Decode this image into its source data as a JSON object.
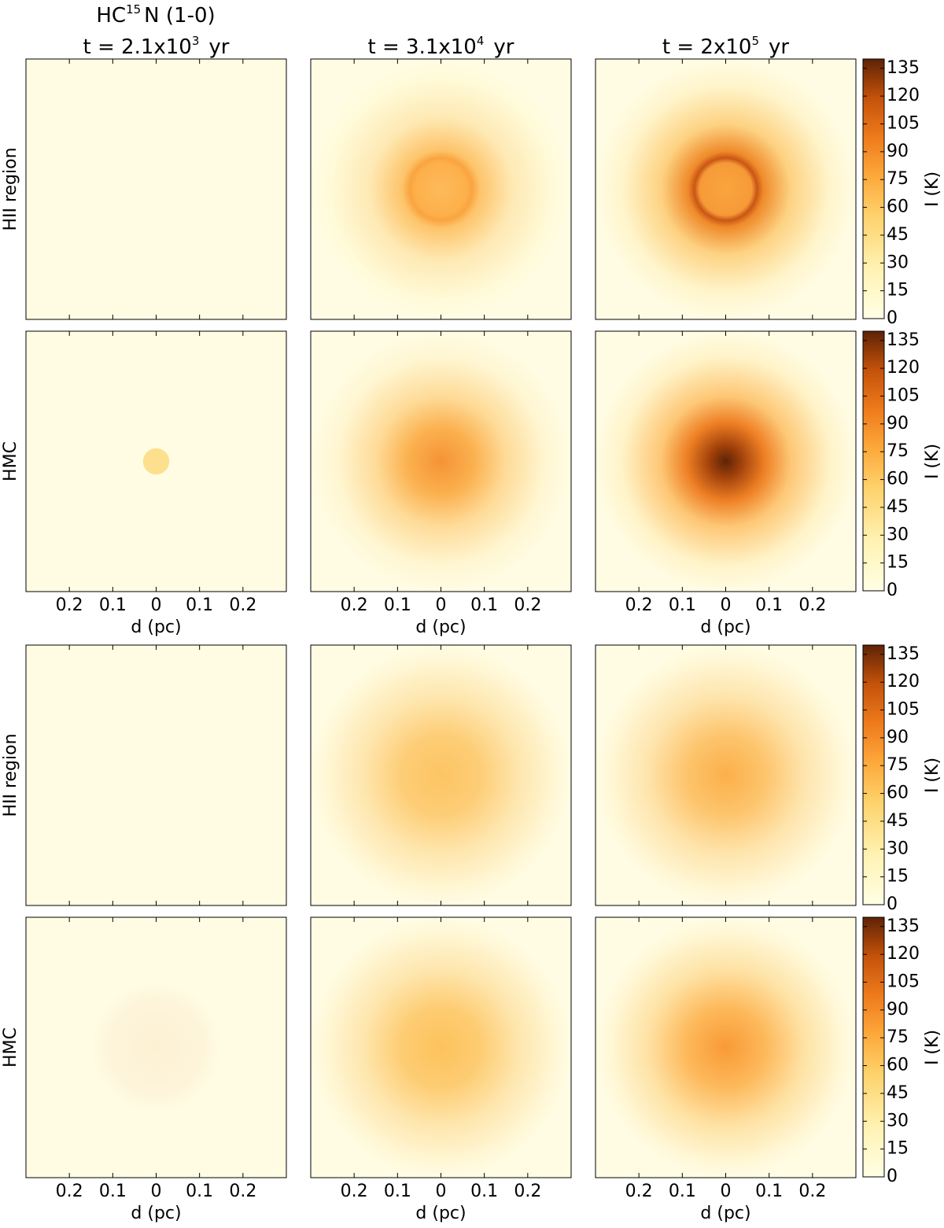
{
  "chart_data": {
    "type": "heatmap-grid",
    "title": {
      "base": "HC",
      "exp": "15",
      "rest": "N (1-0)"
    },
    "columns": [
      {
        "base": "t = 2.1x10",
        "exp": "3",
        "unit": "yr"
      },
      {
        "base": "t = 3.1x10",
        "exp": "4",
        "unit": "yr"
      },
      {
        "base": "t = 2x10",
        "exp": "5",
        "unit": "yr"
      }
    ],
    "rows": [
      "HII region",
      "HMC",
      "HII region",
      "HMC"
    ],
    "xlabel": "d (pc)",
    "xlim": [
      -0.3,
      0.3
    ],
    "xticks": [
      {
        "value": -0.2,
        "label": "0.2"
      },
      {
        "value": -0.1,
        "label": "0.1"
      },
      0,
      0.1,
      0.2
    ],
    "colorbar_label": "I (K)",
    "clim": [
      0,
      140
    ],
    "cticks": [
      0,
      15,
      30,
      45,
      60,
      75,
      90,
      105,
      120,
      135
    ]
  }
}
